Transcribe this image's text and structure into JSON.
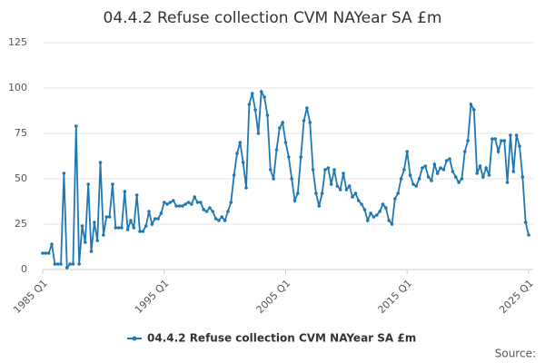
{
  "chart_data": {
    "type": "line",
    "title": "04.4.2 Refuse collection CVM NAYear SA £m",
    "source": "Source:",
    "categories": [
      "1985 Q1",
      null,
      null,
      null,
      null,
      null,
      null,
      null,
      null,
      null,
      null,
      null,
      null,
      null,
      null,
      null,
      null,
      null,
      null,
      null,
      null,
      null,
      null,
      null,
      null,
      null,
      null,
      null,
      null,
      null,
      null,
      null,
      null,
      null,
      null,
      null,
      null,
      null,
      null,
      null,
      "1995 Q1",
      null,
      null,
      null,
      null,
      null,
      null,
      null,
      null,
      null,
      null,
      null,
      null,
      null,
      null,
      null,
      null,
      null,
      null,
      null,
      null,
      null,
      null,
      null,
      null,
      null,
      null,
      null,
      null,
      null,
      null,
      null,
      null,
      null,
      null,
      null,
      null,
      null,
      null,
      null,
      "2005 Q1",
      null,
      null,
      null,
      null,
      null,
      null,
      null,
      null,
      null,
      null,
      null,
      null,
      null,
      null,
      null,
      null,
      null,
      null,
      null,
      null,
      null,
      null,
      null,
      null,
      null,
      null,
      null,
      null,
      null,
      null,
      null,
      null,
      null,
      null,
      null,
      null,
      null,
      null,
      null,
      "2015 Q1",
      null,
      null,
      null,
      null,
      null,
      null,
      null,
      null,
      null,
      null,
      null,
      null,
      null,
      null,
      null,
      null,
      null,
      null,
      null,
      null,
      null,
      null,
      null,
      null,
      null,
      null,
      null,
      null,
      null,
      null,
      null,
      null,
      null,
      null,
      null,
      null,
      null,
      null,
      null,
      "2025 Q1"
    ],
    "series": [
      {
        "name": "04.4.2 Refuse collection CVM NAYear SA £m",
        "color": "#1f78b4",
        "values": [
          9,
          9,
          9,
          14,
          3,
          3,
          3,
          53,
          1,
          3,
          3,
          79,
          3,
          24,
          15,
          47,
          10,
          26,
          16,
          59,
          19,
          29,
          29,
          47,
          23,
          23,
          23,
          43,
          22,
          27,
          23,
          41,
          21,
          21,
          24,
          32,
          25,
          28,
          28,
          31,
          37,
          36,
          37,
          38,
          35,
          35,
          35,
          36,
          37,
          36,
          40,
          37,
          37,
          33,
          32,
          34,
          32,
          28,
          27,
          29,
          27,
          32,
          37,
          52,
          64,
          70,
          59,
          45,
          91,
          97,
          88,
          75,
          98,
          95,
          85,
          55,
          50,
          66,
          78,
          81,
          70,
          62,
          50,
          38,
          42,
          62,
          82,
          89,
          81,
          55,
          42,
          35,
          42,
          55,
          56,
          47,
          55,
          46,
          44,
          53,
          44,
          46,
          40,
          42,
          38,
          36,
          33,
          27,
          31,
          29,
          30,
          32,
          36,
          34,
          27,
          25,
          39,
          42,
          50,
          55,
          65,
          52,
          47,
          46,
          50,
          56,
          57,
          51,
          49,
          58,
          53,
          56,
          55,
          60,
          61,
          54,
          51,
          48,
          50,
          65,
          71,
          91,
          88,
          53,
          57,
          51,
          56,
          52,
          72,
          72,
          65,
          71,
          71,
          48,
          74,
          54,
          74,
          68,
          51,
          26,
          19
        ]
      }
    ],
    "ylim": [
      0,
      125
    ],
    "yticks": [
      0,
      25,
      50,
      75,
      100,
      125
    ],
    "grid": true,
    "legend": "bottom"
  }
}
